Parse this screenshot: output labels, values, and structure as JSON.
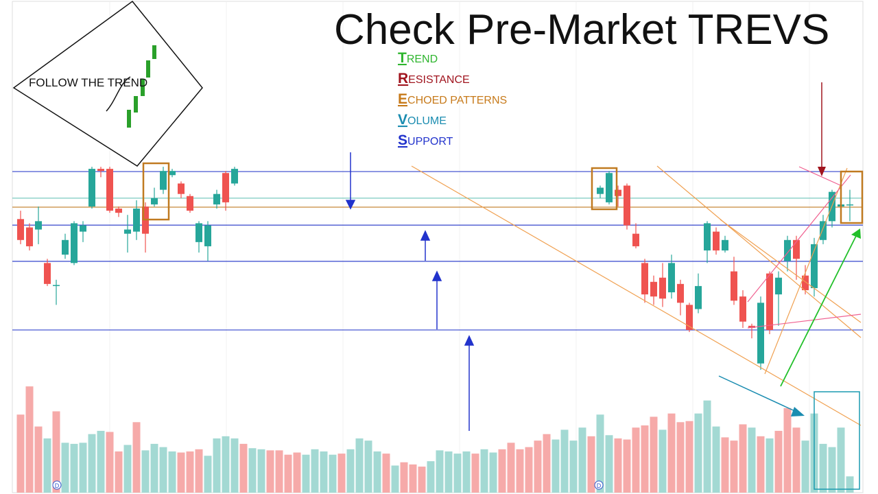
{
  "title": "Check Pre-Market TREVS",
  "logo": "FOLLOW THE TREND",
  "legend": [
    {
      "initial": "T",
      "rest": "REND",
      "color": "#2db52d"
    },
    {
      "initial": "R",
      "rest": "ESISTANCE",
      "color": "#a0141e"
    },
    {
      "initial": "E",
      "rest": "CHOED PATTERNS",
      "color": "#c77a1a"
    },
    {
      "initial": "V",
      "rest": "OLUME",
      "color": "#1a8cb0"
    },
    {
      "initial": "S",
      "rest": "UPPORT",
      "color": "#2233cc"
    }
  ],
  "markers": [
    "D",
    "D"
  ],
  "chart_data": {
    "type": "candlestick",
    "xlim": [
      0,
      93
    ],
    "ylim": [
      0,
      100
    ],
    "up_color": "#26a69a",
    "down_color": "#ef5350",
    "x": [
      0,
      1,
      2,
      3,
      4,
      5,
      6,
      7,
      8,
      9,
      10,
      11,
      12,
      13,
      14,
      15,
      16,
      17,
      18,
      19,
      20,
      21,
      22,
      23,
      24,
      65,
      66,
      67,
      68,
      69,
      70,
      71,
      72,
      73,
      74,
      75,
      76,
      77,
      78,
      79,
      80,
      81,
      82,
      83,
      84,
      85,
      86,
      87,
      88,
      89,
      90,
      91,
      92,
      93
    ],
    "open": [
      74,
      70,
      69,
      53,
      42,
      57,
      53,
      68,
      80,
      98,
      98,
      79,
      67,
      68,
      80,
      81,
      88,
      95,
      91,
      85,
      63,
      61,
      81,
      96,
      91,
      86,
      82,
      88,
      90,
      67,
      53,
      44,
      46,
      39,
      43,
      33,
      31,
      59,
      68,
      59,
      49,
      37,
      23,
      5,
      48,
      38,
      54,
      64,
      47,
      41,
      64,
      73,
      80,
      81
    ],
    "high": [
      78,
      72,
      80,
      55,
      45,
      67,
      73,
      73,
      99,
      99,
      99,
      80,
      76,
      83,
      82,
      89,
      99,
      98,
      92,
      86,
      73,
      73,
      88,
      97,
      99,
      90,
      97,
      90,
      91,
      72,
      55,
      47,
      53,
      57,
      45,
      34,
      48,
      73,
      70,
      66,
      56,
      40,
      24,
      37,
      49,
      49,
      66,
      66,
      52,
      65,
      76,
      88,
      86,
      88
    ],
    "low": [
      62,
      59,
      62,
      42,
      33,
      55,
      52,
      63,
      79,
      94,
      77,
      75,
      58,
      64,
      58,
      80,
      86,
      94,
      84,
      77,
      58,
      54,
      79,
      78,
      90,
      84,
      81,
      80,
      69,
      60,
      34,
      33,
      32,
      36,
      28,
      20,
      29,
      53,
      57,
      58,
      33,
      22,
      17,
      2,
      19,
      23,
      49,
      45,
      38,
      37,
      62,
      70,
      78,
      73
    ],
    "close": [
      64,
      61,
      73,
      43,
      42.5,
      64,
      72,
      71,
      98,
      97,
      78,
      77,
      69,
      79,
      67,
      84,
      97,
      97,
      86,
      78,
      72,
      71,
      86,
      82,
      98,
      89,
      96,
      85,
      71,
      61,
      38,
      37,
      36,
      53,
      34,
      21,
      42,
      72,
      59,
      64,
      35,
      25,
      22,
      34,
      21,
      46,
      64,
      55,
      40,
      62,
      73,
      87,
      81,
      81
    ],
    "levels": [
      {
        "value": 96.7,
        "color": "#3344cc"
      },
      {
        "value": 84,
        "color": "#6cc4b8"
      },
      {
        "value": 79.7,
        "color": "#c07a20"
      },
      {
        "value": 71.1,
        "color": "#3344cc"
      },
      {
        "value": 53.8,
        "color": "#3344cc"
      },
      {
        "value": 21,
        "color": "#3344cc"
      }
    ],
    "volume": {
      "ylim": [
        0,
        100
      ],
      "up_color": "#a3d9d3",
      "down_color": "#f6aaa9",
      "values": [
        72,
        98,
        61,
        50,
        75,
        46,
        45,
        46,
        54,
        57,
        56,
        38,
        44,
        65,
        39,
        45,
        42,
        38,
        37,
        38,
        40,
        34,
        50,
        52,
        50,
        45,
        41,
        40,
        39,
        39,
        35,
        37,
        35,
        40,
        38,
        35,
        36,
        40,
        50,
        48,
        38,
        36,
        25,
        28,
        26,
        24,
        29,
        39,
        38,
        36,
        38,
        36,
        40,
        37,
        40,
        46,
        40,
        42,
        48,
        54,
        49,
        58,
        48,
        60,
        52,
        72,
        53,
        50,
        49,
        60,
        62,
        70,
        58,
        73,
        65,
        66,
        73,
        85,
        61,
        51,
        48,
        63,
        60,
        52,
        50,
        57,
        78,
        60,
        48,
        73,
        45,
        42,
        60,
        15
      ],
      "up": [
        false,
        false,
        false,
        true,
        false,
        true,
        true,
        true,
        true,
        true,
        false,
        false,
        true,
        false,
        true,
        true,
        true,
        true,
        false,
        false,
        false,
        true,
        true,
        true,
        true,
        false,
        true,
        true,
        false,
        false,
        false,
        false,
        true,
        true,
        true,
        true,
        false,
        true,
        true,
        true,
        true,
        false,
        true,
        false,
        false,
        false,
        true,
        true,
        true,
        true,
        true,
        false,
        true,
        true,
        false,
        false,
        false,
        false,
        false,
        false,
        true,
        true,
        true,
        true,
        false,
        true,
        true,
        false,
        false,
        false,
        false,
        false,
        true,
        false,
        false,
        false,
        true,
        true,
        true,
        false,
        false,
        false,
        true,
        false,
        true,
        false,
        false,
        false,
        true,
        true,
        true,
        true,
        true,
        true
      ]
    }
  }
}
